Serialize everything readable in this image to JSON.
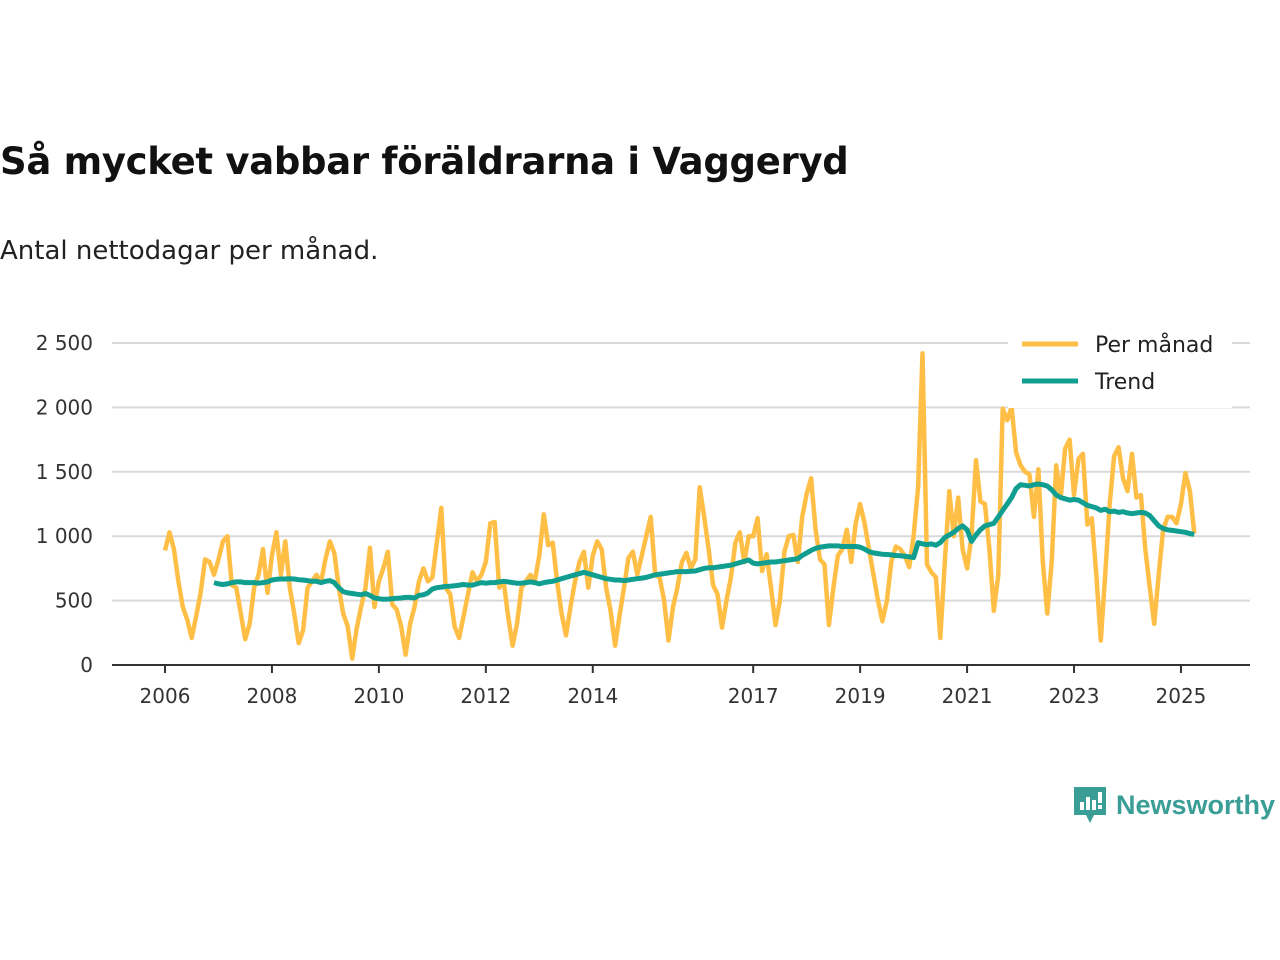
{
  "title": "Så mycket vabbar föräldrarna i Vaggeryd",
  "subtitle": "Antal nettodagar per månad.",
  "brand": "Newsworthy",
  "colors": {
    "monthly": "#ffbf47",
    "trend": "#0f9e8f",
    "grid": "#d9d9d9",
    "axis": "#333333",
    "brand": "#3a9e96"
  },
  "chart_data": {
    "type": "line",
    "title": "Så mycket vabbar föräldrarna i Vaggeryd",
    "xlabel": "",
    "ylabel": "",
    "x_start": "2006-01",
    "x_unit": "month",
    "ylim": [
      0,
      2600
    ],
    "yticks": [
      0,
      500,
      1000,
      1500,
      2000,
      2500
    ],
    "ytick_labels": [
      "0",
      "500",
      "1 000",
      "1 500",
      "2 000",
      "2 500"
    ],
    "xticks": [
      2006,
      2008,
      2010,
      2012,
      2014,
      2017,
      2019,
      2021,
      2023,
      2025
    ],
    "xtick_labels": [
      "2006",
      "2008",
      "2010",
      "2012",
      "2014",
      "2017",
      "2019",
      "2021",
      "2023",
      "2025"
    ],
    "grid": true,
    "legend_position": "top-right",
    "series": [
      {
        "name": "Per månad",
        "start_month_index": 0,
        "values": [
          890,
          1030,
          900,
          650,
          450,
          350,
          210,
          380,
          560,
          820,
          800,
          700,
          820,
          960,
          1000,
          620,
          600,
          400,
          200,
          320,
          600,
          700,
          900,
          560,
          850,
          1030,
          700,
          960,
          600,
          400,
          170,
          270,
          600,
          650,
          700,
          640,
          820,
          960,
          870,
          600,
          400,
          300,
          50,
          280,
          450,
          600,
          910,
          450,
          650,
          750,
          880,
          470,
          430,
          300,
          80,
          320,
          450,
          650,
          750,
          650,
          680,
          950,
          1220,
          600,
          550,
          300,
          210,
          380,
          550,
          720,
          650,
          700,
          800,
          1100,
          1110,
          600,
          650,
          380,
          150,
          320,
          600,
          650,
          700,
          650,
          850,
          1170,
          930,
          950,
          650,
          400,
          230,
          450,
          650,
          800,
          880,
          600,
          850,
          960,
          900,
          600,
          420,
          150,
          380,
          600,
          830,
          880,
          700,
          850,
          1000,
          1150,
          700,
          680,
          500,
          190,
          450,
          600,
          800,
          870,
          750,
          820,
          1380,
          1150,
          900,
          620,
          550,
          290,
          500,
          680,
          950,
          1030,
          800,
          1000,
          1000,
          1140,
          730,
          860,
          600,
          310,
          500,
          880,
          1000,
          1010,
          800,
          1150,
          1330,
          1450,
          1050,
          820,
          780,
          310,
          600,
          850,
          900,
          1050,
          800,
          1100,
          1250,
          1100,
          900,
          700,
          500,
          340,
          500,
          800,
          920,
          900,
          850,
          760,
          1000,
          1380,
          2420,
          780,
          720,
          680,
          210,
          800,
          1350,
          1000,
          1300,
          900,
          750,
          1000,
          1590,
          1270,
          1250,
          900,
          420,
          700,
          1990,
          1900,
          2000,
          1650,
          1550,
          1500,
          1480,
          1150,
          1520,
          800,
          400,
          800,
          1550,
          1300,
          1680,
          1750,
          1320,
          1600,
          1640,
          1090,
          1140,
          700,
          190,
          700,
          1250,
          1620,
          1690,
          1450,
          1350,
          1640,
          1300,
          1320,
          900,
          600,
          320,
          700,
          1050,
          1150,
          1150,
          1100,
          1250,
          1490,
          1350,
          1020
        ]
      },
      {
        "name": "Trend",
        "start_month_index": 11,
        "values": [
          640,
          630,
          625,
          630,
          640,
          645,
          645,
          640,
          640,
          640,
          635,
          640,
          645,
          660,
          665,
          668,
          668,
          670,
          668,
          662,
          660,
          655,
          650,
          650,
          640,
          650,
          655,
          640,
          600,
          570,
          560,
          555,
          550,
          545,
          555,
          540,
          520,
          515,
          510,
          512,
          515,
          518,
          520,
          525,
          525,
          520,
          540,
          545,
          560,
          590,
          600,
          605,
          610,
          612,
          615,
          620,
          625,
          620,
          620,
          630,
          640,
          635,
          640,
          640,
          645,
          650,
          645,
          640,
          635,
          635,
          640,
          645,
          640,
          630,
          640,
          645,
          650,
          660,
          670,
          680,
          690,
          700,
          710,
          720,
          710,
          700,
          690,
          680,
          670,
          665,
          660,
          660,
          655,
          660,
          665,
          670,
          675,
          680,
          690,
          700,
          705,
          710,
          715,
          720,
          725,
          725,
          725,
          728,
          730,
          740,
          750,
          755,
          755,
          760,
          765,
          770,
          775,
          785,
          795,
          805,
          815,
          790,
          785,
          790,
          795,
          800,
          800,
          805,
          810,
          815,
          820,
          825,
          850,
          870,
          890,
          905,
          915,
          920,
          925,
          925,
          925,
          920,
          920,
          920,
          920,
          915,
          900,
          880,
          870,
          865,
          860,
          858,
          855,
          850,
          848,
          845,
          840,
          835,
          950,
          940,
          935,
          940,
          930,
          950,
          990,
          1010,
          1030,
          1060,
          1080,
          1050,
          960,
          1010,
          1050,
          1080,
          1090,
          1100,
          1150,
          1200,
          1250,
          1300,
          1370,
          1400,
          1395,
          1390,
          1400,
          1405,
          1400,
          1390,
          1360,
          1320,
          1300,
          1290,
          1280,
          1285,
          1280,
          1260,
          1240,
          1230,
          1220,
          1200,
          1210,
          1190,
          1195,
          1185,
          1190,
          1180,
          1175,
          1180,
          1185,
          1180,
          1160,
          1120,
          1080,
          1060,
          1050,
          1045,
          1040,
          1035,
          1030,
          1020,
          1015
        ]
      }
    ]
  }
}
